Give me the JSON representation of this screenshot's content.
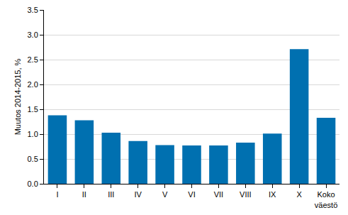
{
  "chart_data": {
    "type": "bar",
    "categories": [
      "I",
      "II",
      "III",
      "IV",
      "V",
      "VI",
      "VII",
      "VIII",
      "IX",
      "X",
      "Koko väestö"
    ],
    "values": [
      1.38,
      1.28,
      1.03,
      0.86,
      0.78,
      0.77,
      0.77,
      0.83,
      1.01,
      2.71,
      1.33
    ],
    "color": "#0070b0",
    "y_label": "Muutos 2014-2015, %",
    "ylim": [
      0,
      3.5
    ],
    "yticks": [
      {
        "value": 0,
        "label": "0.0"
      },
      0.5,
      {
        "value": 1,
        "label": "1.0"
      },
      1.5,
      {
        "value": 2,
        "label": "2.0"
      },
      2.5,
      {
        "value": 3,
        "label": "3.0"
      },
      3.5
    ],
    "grid": true
  }
}
